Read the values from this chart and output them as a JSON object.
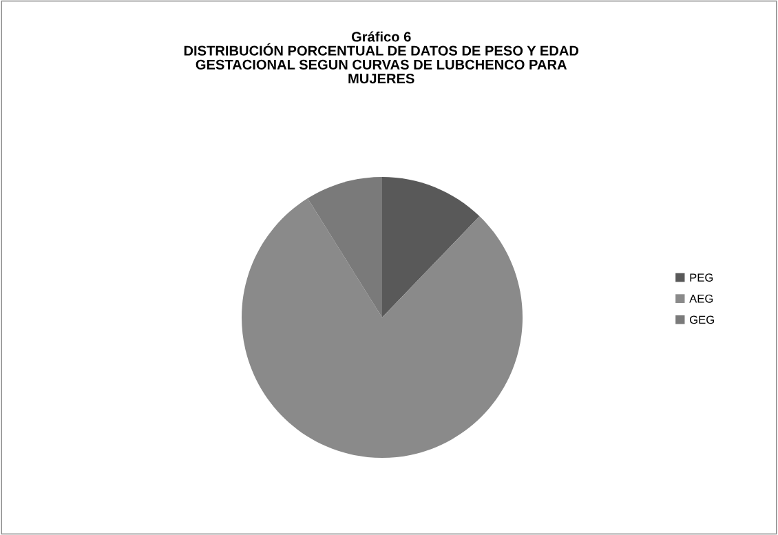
{
  "chart_data": {
    "type": "pie",
    "title": "Gráfico 6\nDISTRIBUCIÓN PORCENTUAL DE DATOS DE PESO Y EDAD\nGESTACIONAL SEGUN CURVAS DE LUBCHENCO PARA\nMUJERES",
    "categories": [
      "PEG",
      "AEG",
      "GEG"
    ],
    "values": [
      12.2,
      78.9,
      8.9
    ],
    "colors": [
      "#595959",
      "#8a8a8a",
      "#7a7a7a"
    ],
    "legend": "right"
  }
}
